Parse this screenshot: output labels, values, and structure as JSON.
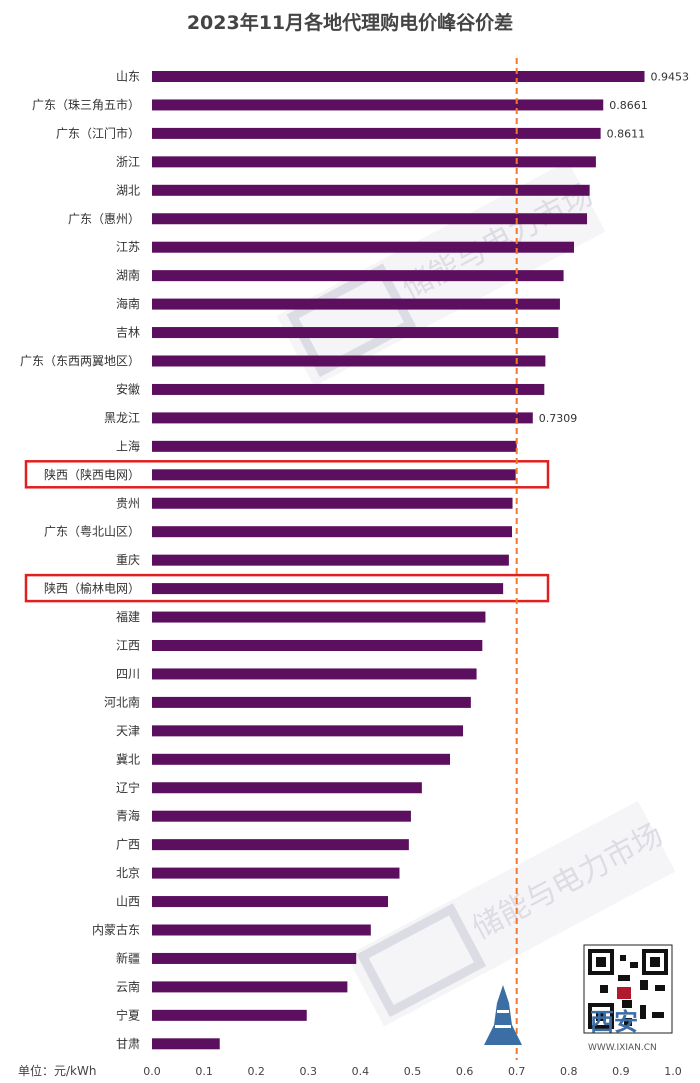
{
  "chart_data": {
    "type": "bar",
    "orientation": "horizontal",
    "title": "2023年11月各地代理购电价峰谷价差",
    "unit_label": "单位：元/kWh",
    "xlim": [
      0,
      1.0
    ],
    "x_ticks": [
      "0.0",
      "0.1",
      "0.2",
      "0.3",
      "0.4",
      "0.5",
      "0.6",
      "0.7",
      "0.8",
      "0.9",
      "1.0"
    ],
    "reference_line": 0.7,
    "bar_color": "#5b0f5e",
    "reference_color": "#f07a2a",
    "highlight_color": "#e02020",
    "categories": [
      "山东",
      "广东（珠三角五市）",
      "广东（江门市）",
      "浙江",
      "湖北",
      "广东（惠州）",
      "江苏",
      "湖南",
      "海南",
      "吉林",
      "广东（东西两翼地区）",
      "安徽",
      "黑龙江",
      "上海",
      "陕西（陕西电网）",
      "贵州",
      "广东（粤北山区）",
      "重庆",
      "陕西（榆林电网）",
      "福建",
      "江西",
      "四川",
      "河北南",
      "天津",
      "冀北",
      "辽宁",
      "青海",
      "广西",
      "北京",
      "山西",
      "内蒙古东",
      "新疆",
      "云南",
      "宁夏",
      "甘肃"
    ],
    "values": [
      0.9453,
      0.8661,
      0.8611,
      0.852,
      0.84,
      0.835,
      0.81,
      0.79,
      0.783,
      0.78,
      0.755,
      0.753,
      0.7309,
      0.7,
      0.698,
      0.692,
      0.691,
      0.685,
      0.674,
      0.64,
      0.634,
      0.623,
      0.612,
      0.597,
      0.572,
      0.518,
      0.497,
      0.493,
      0.475,
      0.453,
      0.42,
      0.392,
      0.375,
      0.297,
      0.13
    ],
    "data_labels": [
      {
        "category": "山东",
        "text": "0.9453"
      },
      {
        "category": "广东（珠三角五市）",
        "text": "0.8661"
      },
      {
        "category": "广东（江门市）",
        "text": "0.8611"
      },
      {
        "category": "黑龙江",
        "text": "0.7309"
      }
    ],
    "highlighted": [
      "陕西（陕西电网）",
      "陕西（榆林电网）"
    ],
    "grid": false
  },
  "watermarks": [
    "储能与电力市场",
    "储能与电力市场"
  ],
  "logo": {
    "text": "西安",
    "url": "WWW.IXIAN.CN"
  }
}
